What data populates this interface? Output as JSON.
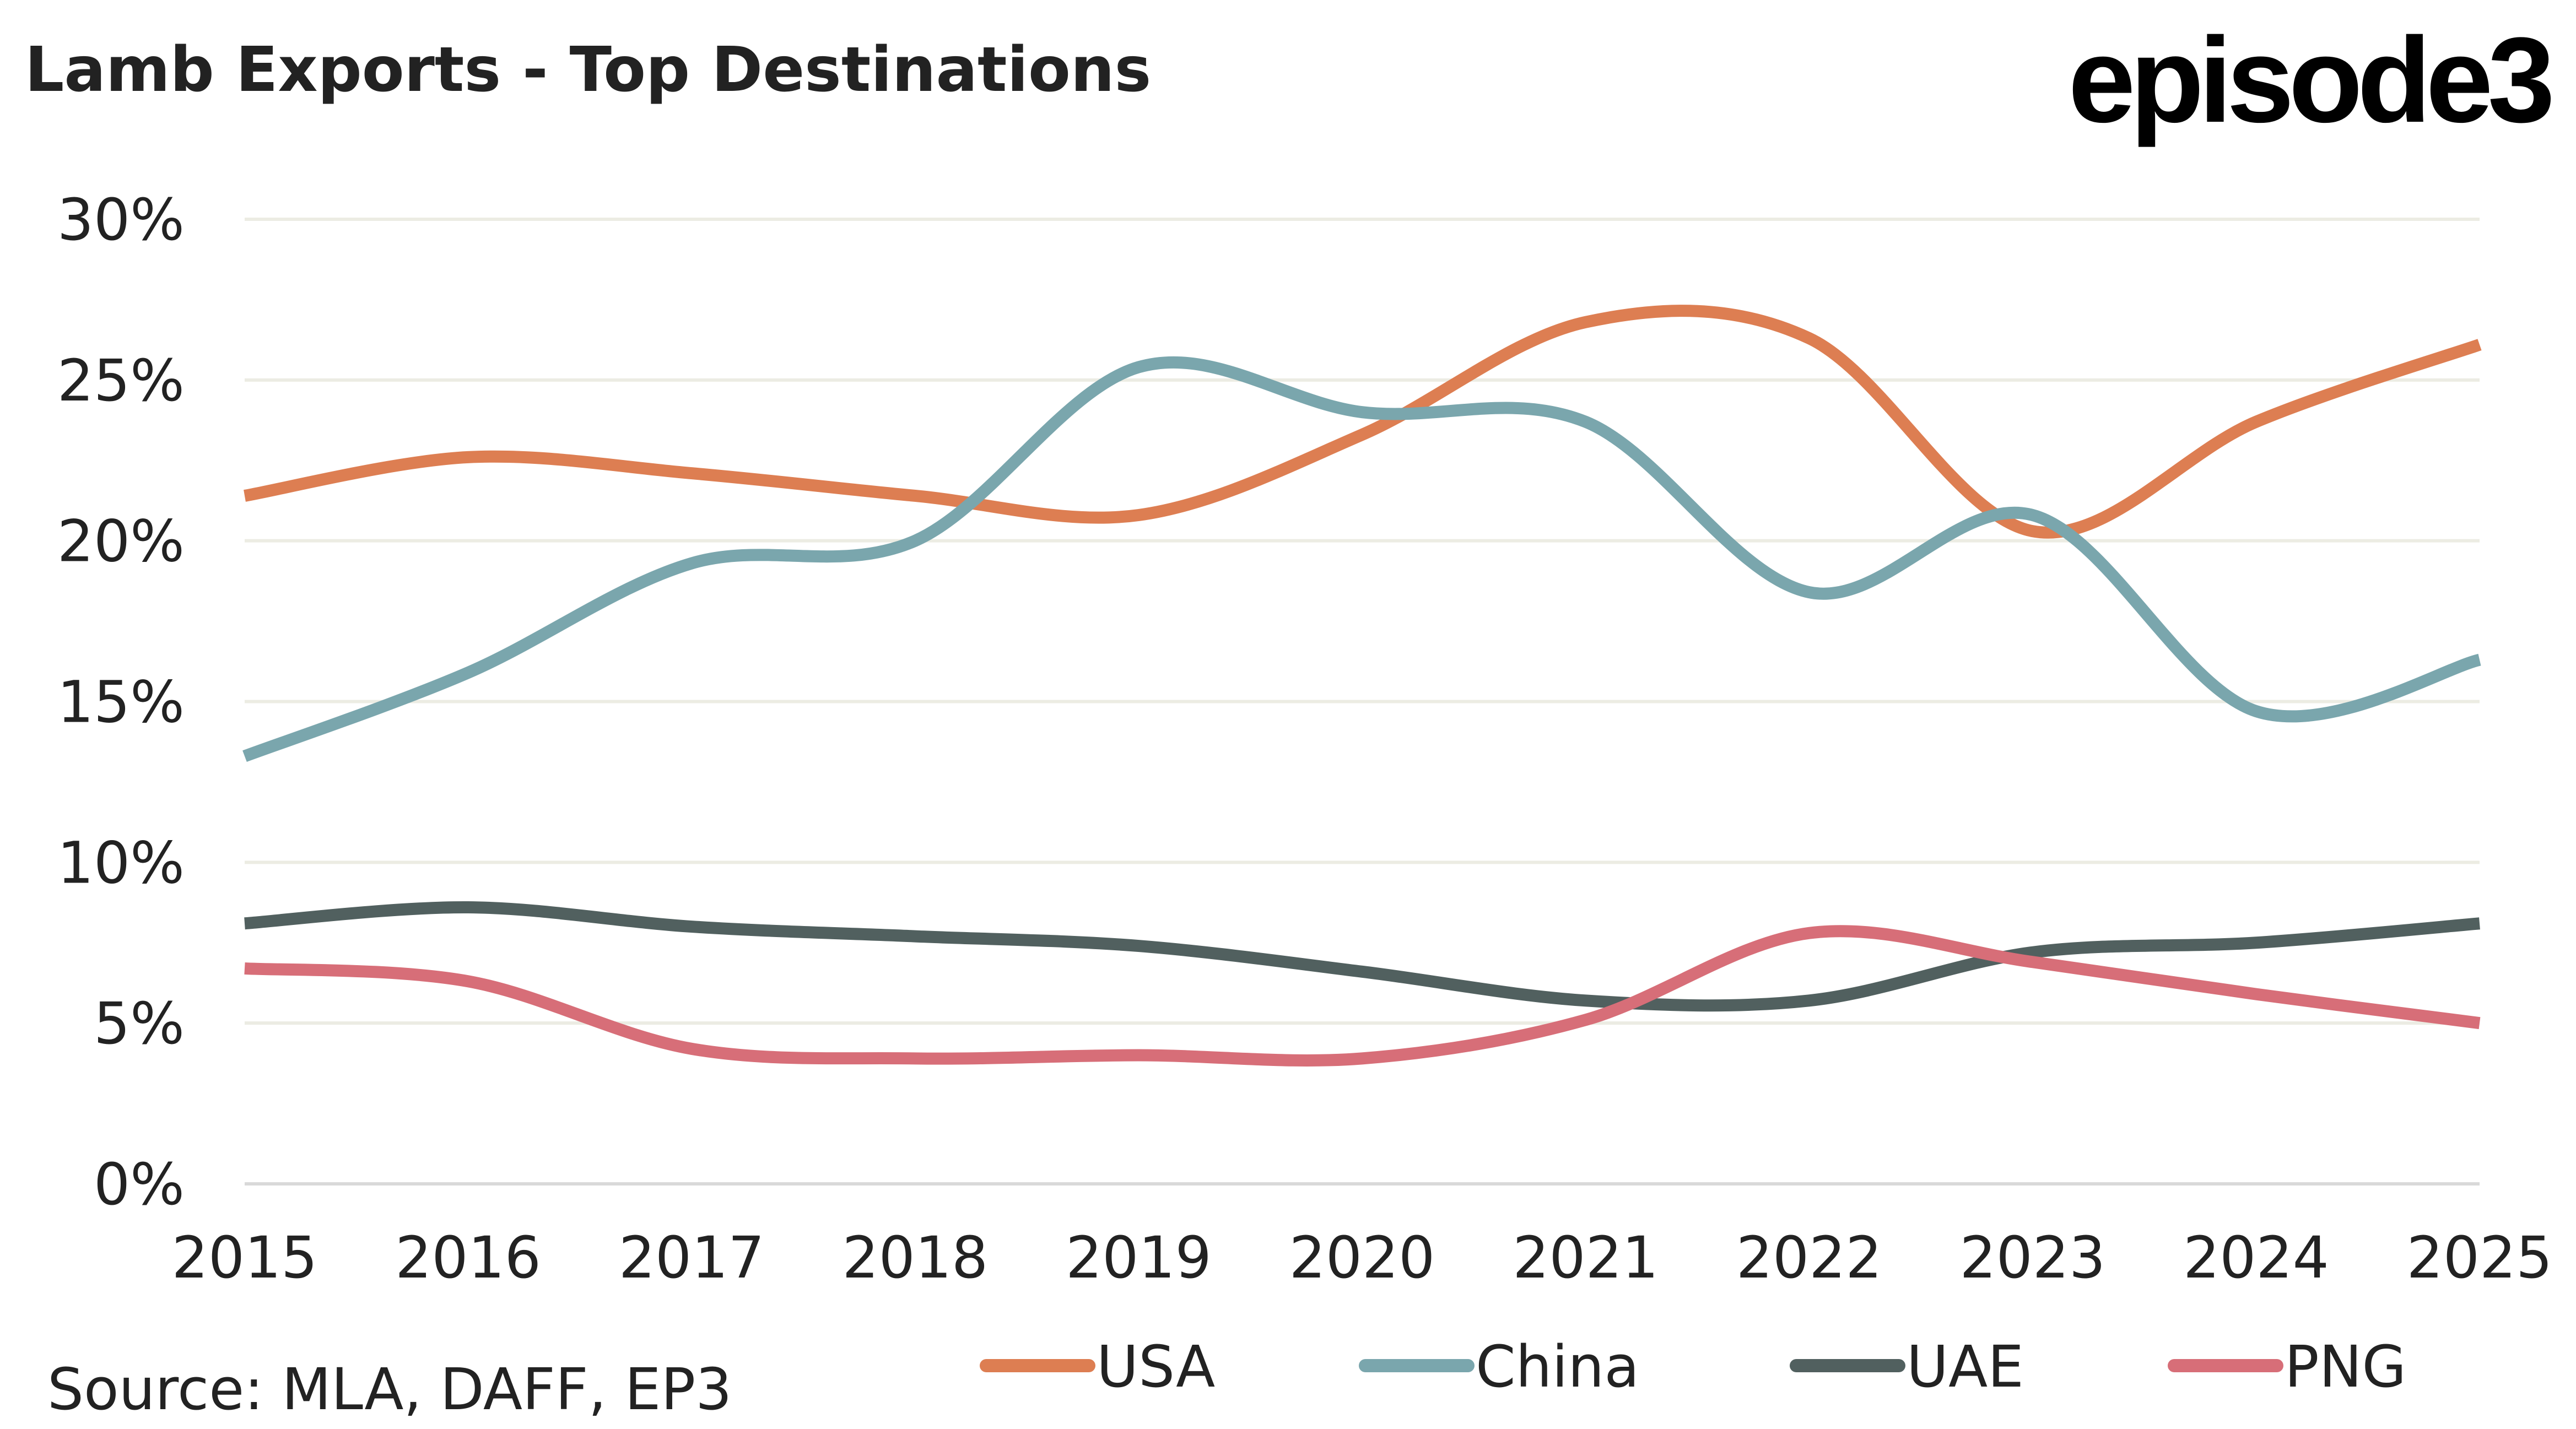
{
  "header": {
    "title": "Lamb Exports - Top Destinations",
    "logo_text": "episode3"
  },
  "footer": {
    "source": "Source: MLA, DAFF, EP3"
  },
  "chart_data": {
    "type": "line",
    "title": "Lamb Exports - Top Destinations",
    "xlabel": "",
    "ylabel": "",
    "x": [
      "2015",
      "2016",
      "2017",
      "2018",
      "2019",
      "2020",
      "2021",
      "2022",
      "2023",
      "2024",
      "2025"
    ],
    "ylim": [
      0,
      30
    ],
    "yticks": [
      0,
      5,
      10,
      15,
      20,
      25,
      30
    ],
    "ytick_labels": [
      "0%",
      "5%",
      "10%",
      "15%",
      "20%",
      "25%",
      "30%"
    ],
    "grid": true,
    "smooth": true,
    "legend_position": "bottom",
    "series": [
      {
        "name": "USA",
        "color": "#DD7E52",
        "values": [
          21.4,
          22.6,
          22.1,
          21.4,
          20.8,
          23.3,
          26.8,
          26.3,
          20.3,
          23.7,
          26.1
        ]
      },
      {
        "name": "China",
        "color": "#7AA6AD",
        "values": [
          13.3,
          15.9,
          19.3,
          20.0,
          25.4,
          24.0,
          23.7,
          18.4,
          20.8,
          14.7,
          16.3
        ]
      },
      {
        "name": "UAE",
        "color": "#51605F",
        "values": [
          8.1,
          8.6,
          8.0,
          7.7,
          7.4,
          6.6,
          5.7,
          5.7,
          7.2,
          7.5,
          8.1
        ]
      },
      {
        "name": "PNG",
        "color": "#D76E78",
        "values": [
          6.7,
          6.3,
          4.2,
          3.9,
          4.0,
          3.9,
          5.1,
          7.8,
          6.9,
          5.9,
          5.0
        ]
      }
    ],
    "source": "Source: MLA, DAFF, EP3"
  }
}
